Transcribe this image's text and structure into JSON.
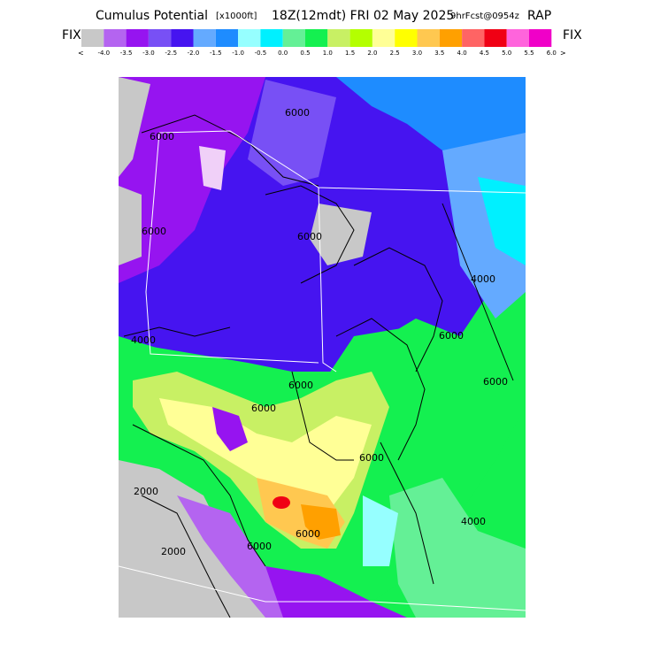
{
  "header": {
    "title": "Cumulus Potential",
    "units": "[x1000ft]",
    "valid": "18Z(12mdt) FRI 02 May 2025",
    "forecast": "9hrFcst@0954z",
    "model": "RAP"
  },
  "colorbar": {
    "left_label": "FIX",
    "right_label": "FIX",
    "left_arrow": "<",
    "right_arrow": ">",
    "colors": [
      "#c8c8c8",
      "#b464f0",
      "#9614f0",
      "#7850f5",
      "#4614f0",
      "#64aaff",
      "#1e8cff",
      "#96ffff",
      "#00f0ff",
      "#64f096",
      "#14f050",
      "#c8f064",
      "#b4ff00",
      "#ffff96",
      "#ffff00",
      "#ffc850",
      "#ffa000",
      "#ff6464",
      "#f00014",
      "#ff64dc",
      "#f000c8"
    ],
    "labels": [
      "-4.0",
      "-3.5",
      "-3.0",
      "-2.5",
      "-2.0",
      "-1.5",
      "-1.0",
      "-0.5",
      "0.0",
      "0.5",
      "1.0",
      "1.5",
      "2.0",
      "2.5",
      "3.0",
      "3.5",
      "4.0",
      "4.5",
      "5.0",
      "5.5",
      "6.0"
    ]
  },
  "map": {
    "contour_labels": [
      "6000",
      "6000",
      "6000",
      "4000",
      "6000",
      "6000",
      "6000",
      "4000",
      "6000",
      "6000",
      "6000",
      "2000",
      "2000",
      "6000",
      "6000",
      "4000"
    ]
  }
}
